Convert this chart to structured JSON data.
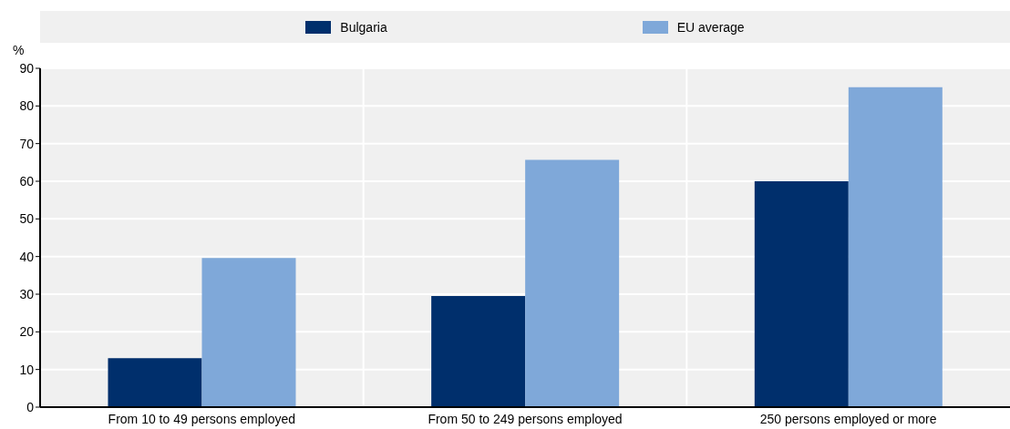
{
  "chart_data": {
    "type": "bar",
    "ylabel": "%",
    "categories": [
      "From 10 to 49 persons employed",
      "From 50 to 249 persons employed",
      "250 persons employed or more"
    ],
    "series": [
      {
        "name": "Bulgaria",
        "color": "#002f6c",
        "values": [
          13,
          29.5,
          60
        ]
      },
      {
        "name": "EU average",
        "color": "#7fa8d9",
        "values": [
          39.6,
          65.7,
          85
        ]
      }
    ],
    "ylim": [
      0,
      90
    ],
    "yticks": [
      0,
      10,
      20,
      30,
      40,
      50,
      60,
      70,
      80,
      90
    ],
    "grid": true,
    "legend": "top"
  }
}
